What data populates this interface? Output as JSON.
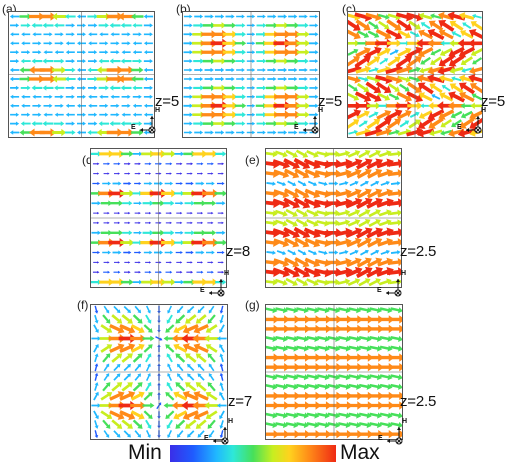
{
  "panels": [
    {
      "id": "a",
      "letter": "(a)",
      "z": "z=5"
    },
    {
      "id": "b",
      "letter": "(b)",
      "z": "z=5"
    },
    {
      "id": "c",
      "letter": "(c)",
      "z": "z=5"
    },
    {
      "id": "d",
      "letter": "(d)",
      "z": "z=8"
    },
    {
      "id": "e",
      "letter": "(e)",
      "z": "z=2.5"
    },
    {
      "id": "f",
      "letter": "(f)",
      "z": "z=7"
    },
    {
      "id": "g",
      "letter": "(g)",
      "z": "z=2.5"
    }
  ],
  "axes": {
    "e_label": "E",
    "h_label": "H"
  },
  "colorbar": {
    "min": "Min",
    "max": "Max"
  },
  "colors": {
    "scale": [
      "#3a2ee8",
      "#1f5cff",
      "#20b8ff",
      "#2ee8d8",
      "#46e05a",
      "#c8ee20",
      "#ffd21e",
      "#ff8a18",
      "#ef2a14"
    ]
  }
}
